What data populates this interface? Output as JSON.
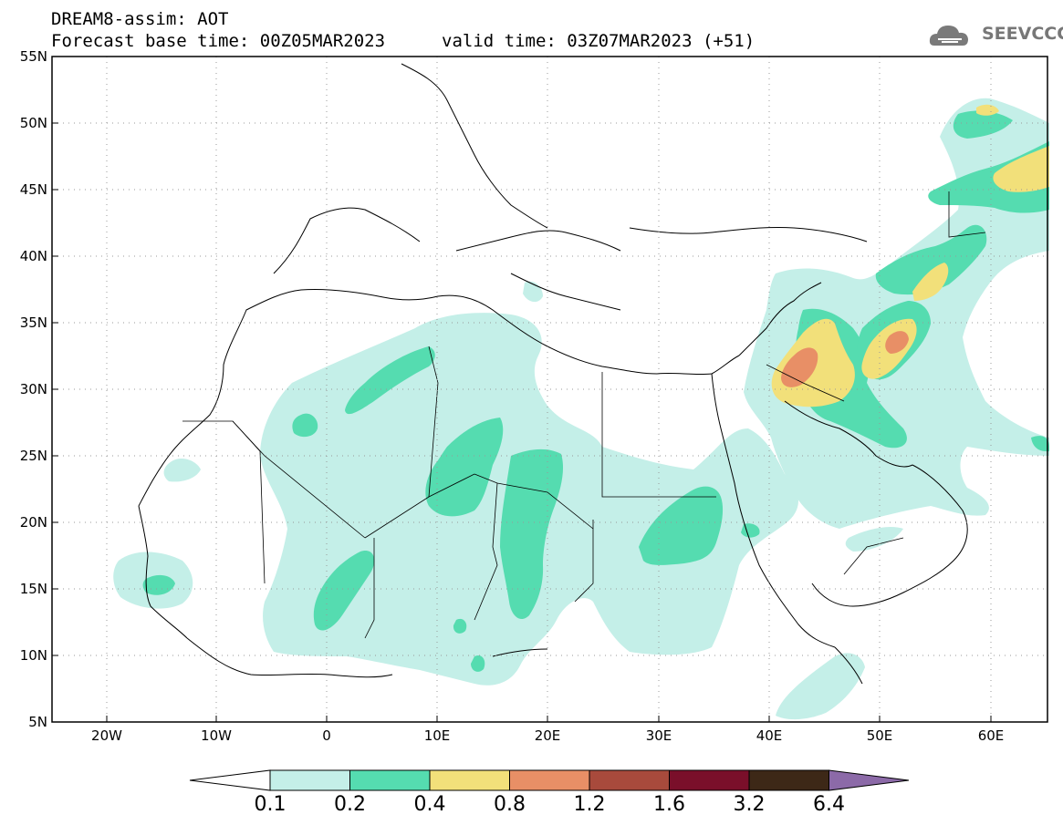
{
  "header": {
    "title": "DREAM8-assim: AOT",
    "base_time": "Forecast base time: 00Z05MAR2023",
    "valid_time": "valid time: 03Z07MAR2023 (+51)",
    "logo_text": "SEEVCCC"
  },
  "map": {
    "lon_range": [
      -25,
      65
    ],
    "lat_range": [
      5,
      55
    ],
    "lat_labels": [
      "55N",
      "50N",
      "45N",
      "40N",
      "35N",
      "30N",
      "25N",
      "20N",
      "15N",
      "10N",
      "5N"
    ],
    "lon_labels": [
      "20W",
      "10W",
      "0",
      "10E",
      "20E",
      "30E",
      "40E",
      "50E",
      "60E"
    ]
  },
  "colorbar": {
    "labels": [
      "0.1",
      "0.2",
      "0.4",
      "0.8",
      "1.2",
      "1.6",
      "3.2",
      "6.4"
    ],
    "colors": [
      "#ffffff",
      "#c4efe8",
      "#55dcb0",
      "#f2e07a",
      "#e88f66",
      "#a84a3c",
      "#7a0f2a",
      "#3d2817",
      "#8c6aa8"
    ]
  },
  "colors": {
    "level1": "#c4efe8",
    "level2": "#55dcb0",
    "level3": "#f2e07a",
    "level4": "#e88f66"
  }
}
